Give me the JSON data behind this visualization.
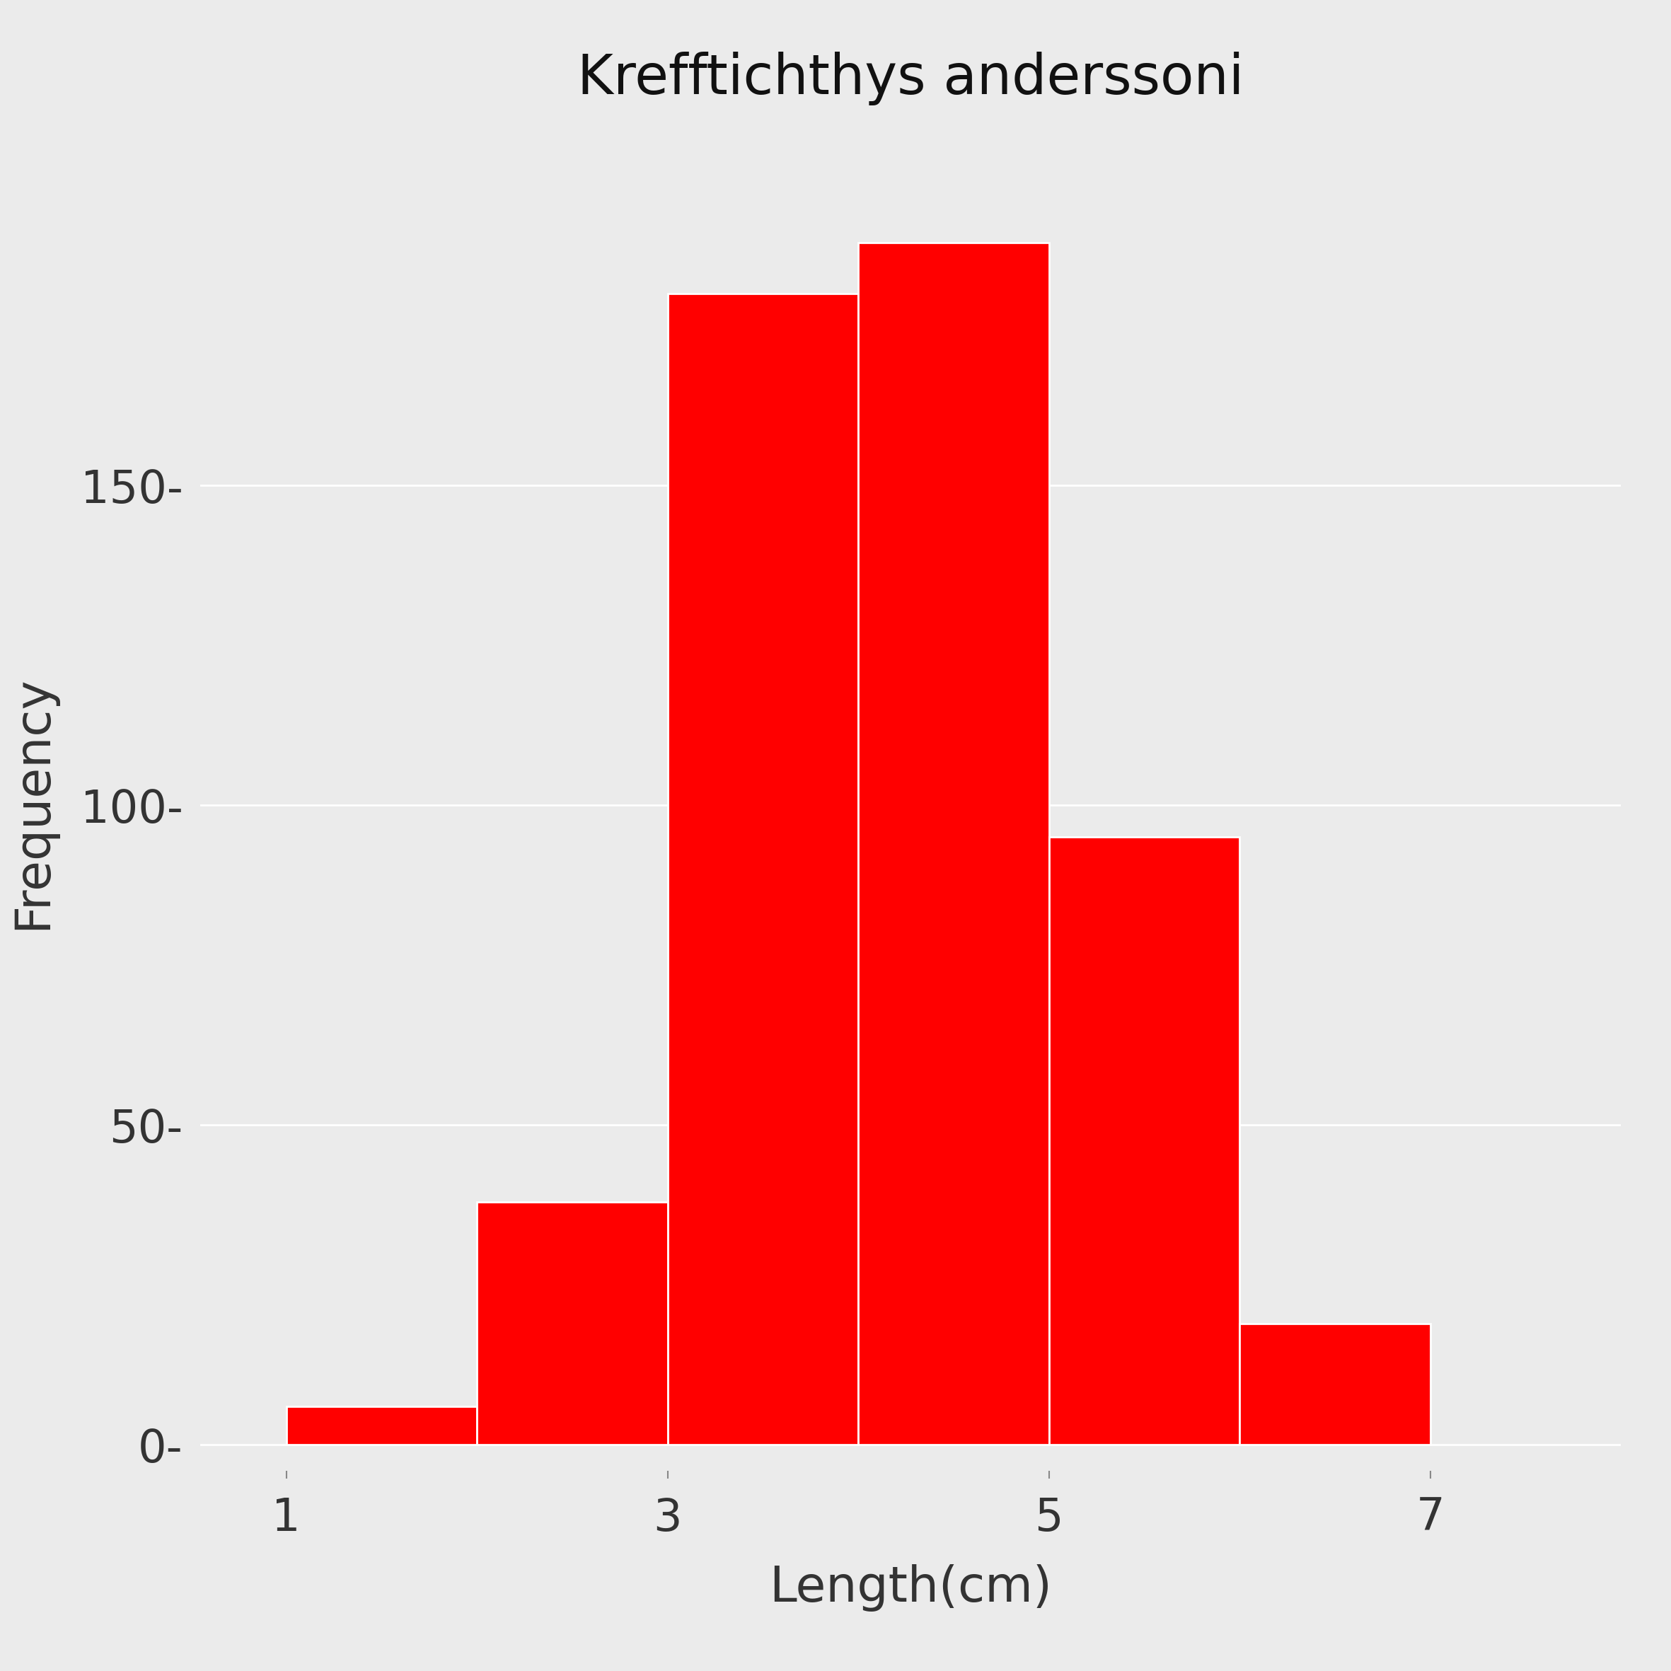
{
  "title": "Krefftichthys anderssoni",
  "xlabel": "Length(cm)",
  "ylabel": "Frequency",
  "bar_color": "#FF0000",
  "background_color": "#EBEBEB",
  "plot_bg_color": "#EBEBEB",
  "bin_edges": [
    1.0,
    2.0,
    3.0,
    4.0,
    5.0,
    6.0,
    7.0,
    8.0
  ],
  "frequencies": [
    6,
    38,
    180,
    188,
    95,
    19,
    0
  ],
  "xlim": [
    0.55,
    8.0
  ],
  "ylim": [
    -4,
    205
  ],
  "yticks": [
    0,
    50,
    100,
    150
  ],
  "xticks": [
    1,
    3,
    5,
    7
  ],
  "grid_color": "#FFFFFF",
  "title_fontsize": 56,
  "axis_label_fontsize": 50,
  "tick_fontsize": 46
}
